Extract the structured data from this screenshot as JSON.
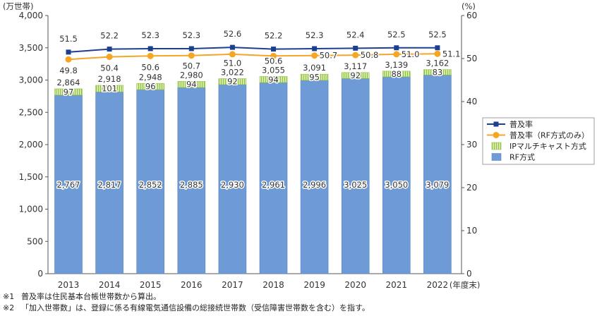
{
  "chart_data": {
    "type": "bar",
    "stacked": true,
    "categories": [
      "2013",
      "2014",
      "2015",
      "2016",
      "2017",
      "2018",
      "2019",
      "2020",
      "2021",
      "2022"
    ],
    "x_unit": "(年度末)",
    "y_left": {
      "unit": "(万世帯)",
      "ylim": [
        0,
        4000
      ],
      "ticks": [
        "0",
        "500",
        "1,000",
        "1,500",
        "2,000",
        "2,500",
        "3,000",
        "3,500",
        "4,000"
      ]
    },
    "y_right": {
      "unit": "(%)",
      "ylim": [
        0,
        60
      ],
      "ticks": [
        "0",
        "10",
        "20",
        "30",
        "40",
        "50",
        "60"
      ]
    },
    "series": [
      {
        "name": "普及率",
        "type": "line",
        "axis": "right",
        "marker": "square",
        "color": "#1d3f8f",
        "values": [
          51.5,
          52.2,
          52.3,
          52.3,
          52.6,
          52.2,
          52.3,
          52.4,
          52.5,
          52.5
        ],
        "labels": [
          "51.5",
          "52.2",
          "52.3",
          "52.3",
          "52.6",
          "52.2",
          "52.3",
          "52.4",
          "52.5",
          "52.5"
        ]
      },
      {
        "name": "普及率（RF方式のみ）",
        "type": "line",
        "axis": "right",
        "marker": "circle",
        "color": "#f5a623",
        "values": [
          49.8,
          50.4,
          50.6,
          50.7,
          51.0,
          50.6,
          50.7,
          50.8,
          51.0,
          51.1
        ],
        "labels": [
          "49.8",
          "50.4",
          "50.6",
          "50.7",
          "51.0",
          "50.6",
          "50.7",
          "50.8",
          "51.0",
          "51.1"
        ]
      },
      {
        "name": "IPマルチキャスト方式",
        "type": "bar",
        "axis": "left",
        "stack": "top",
        "pattern": "vertical-stripes",
        "color": "#8fc13e",
        "values": [
          97,
          101,
          96,
          94,
          92,
          94,
          95,
          92,
          88,
          83
        ],
        "labels": [
          "97",
          "101",
          "96",
          "94",
          "92",
          "94",
          "95",
          "92",
          "88",
          "83"
        ]
      },
      {
        "name": "RF方式",
        "type": "bar",
        "axis": "left",
        "stack": "bottom",
        "color": "#6e9bd6",
        "values": [
          2767,
          2817,
          2852,
          2885,
          2930,
          2961,
          2996,
          3025,
          3050,
          3079
        ],
        "labels": [
          "2,767",
          "2,817",
          "2,852",
          "2,885",
          "2,930",
          "2,961",
          "2,996",
          "3,025",
          "3,050",
          "3,079"
        ]
      }
    ],
    "totals": {
      "values": [
        2864,
        2918,
        2948,
        2980,
        3022,
        3055,
        3091,
        3117,
        3139,
        3162
      ],
      "labels": [
        "2,864",
        "2,918",
        "2,948",
        "2,980",
        "3,022",
        "3,055",
        "3,091",
        "3,117",
        "3,139",
        "3,162"
      ]
    },
    "grid": false,
    "legend": "right"
  },
  "footnotes": [
    {
      "mark": "※1",
      "text": "普及率は住民基本台帳世帯数から算出。"
    },
    {
      "mark": "※2",
      "text": "「加入世帯数」は、登録に係る有線電気通信設備の総接続世帯数（受信障害世帯数を含む）を指す。"
    }
  ]
}
